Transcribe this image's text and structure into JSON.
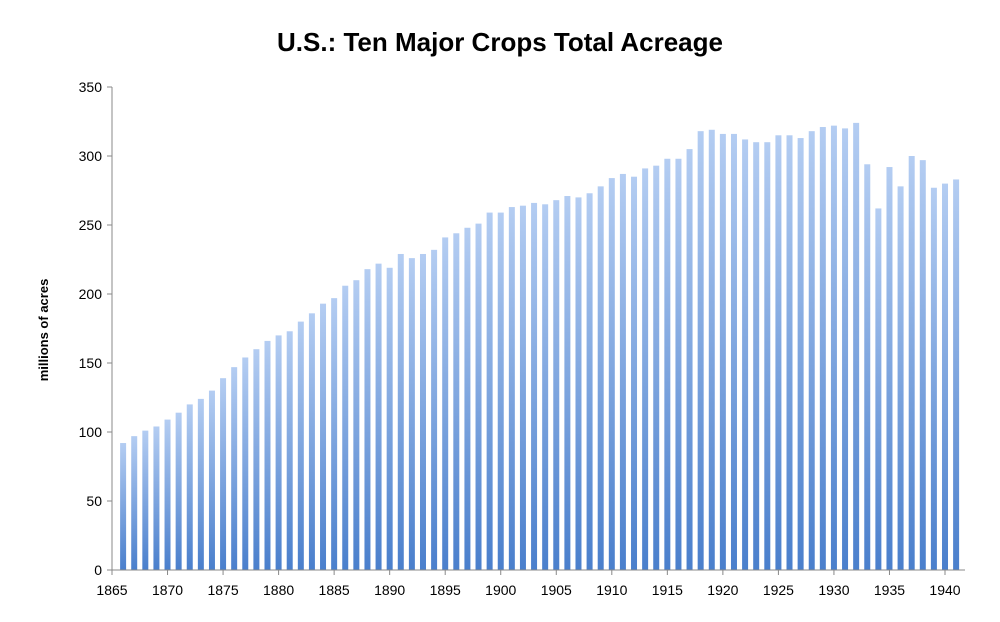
{
  "chart_data": {
    "type": "bar",
    "title": "U.S.: Ten Major Crops Total Acreage",
    "xlabel": "",
    "ylabel": "millions of acres",
    "ylim": [
      0,
      350
    ],
    "yticks": [
      0,
      50,
      100,
      150,
      200,
      250,
      300,
      350
    ],
    "xticks": [
      1865,
      1870,
      1875,
      1880,
      1885,
      1890,
      1895,
      1900,
      1905,
      1910,
      1915,
      1920,
      1925,
      1930,
      1935,
      1940
    ],
    "grid": false,
    "legend": "none",
    "bar_color_top": "#b4cdf2",
    "bar_color_bottom": "#4a7fcc",
    "x": [
      1866,
      1867,
      1868,
      1869,
      1870,
      1871,
      1872,
      1873,
      1874,
      1875,
      1876,
      1877,
      1878,
      1879,
      1880,
      1881,
      1882,
      1883,
      1884,
      1885,
      1886,
      1887,
      1888,
      1889,
      1890,
      1891,
      1892,
      1893,
      1894,
      1895,
      1896,
      1897,
      1898,
      1899,
      1900,
      1901,
      1902,
      1903,
      1904,
      1905,
      1906,
      1907,
      1908,
      1909,
      1910,
      1911,
      1912,
      1913,
      1914,
      1915,
      1916,
      1917,
      1918,
      1919,
      1920,
      1921,
      1922,
      1923,
      1924,
      1925,
      1926,
      1927,
      1928,
      1929,
      1930,
      1931,
      1932,
      1933,
      1934,
      1935,
      1936,
      1937,
      1938,
      1939,
      1940,
      1941
    ],
    "values": [
      92,
      97,
      101,
      104,
      109,
      114,
      120,
      124,
      130,
      139,
      147,
      154,
      160,
      166,
      170,
      173,
      180,
      186,
      193,
      197,
      206,
      210,
      218,
      222,
      219,
      229,
      226,
      229,
      232,
      241,
      244,
      248,
      251,
      259,
      259,
      263,
      264,
      266,
      265,
      268,
      271,
      270,
      273,
      278,
      284,
      287,
      285,
      291,
      293,
      298,
      298,
      305,
      318,
      319,
      316,
      316,
      312,
      310,
      310,
      315,
      315,
      313,
      318,
      321,
      322,
      320,
      324,
      294,
      262,
      292,
      278,
      300,
      297,
      277,
      280,
      283
    ]
  }
}
